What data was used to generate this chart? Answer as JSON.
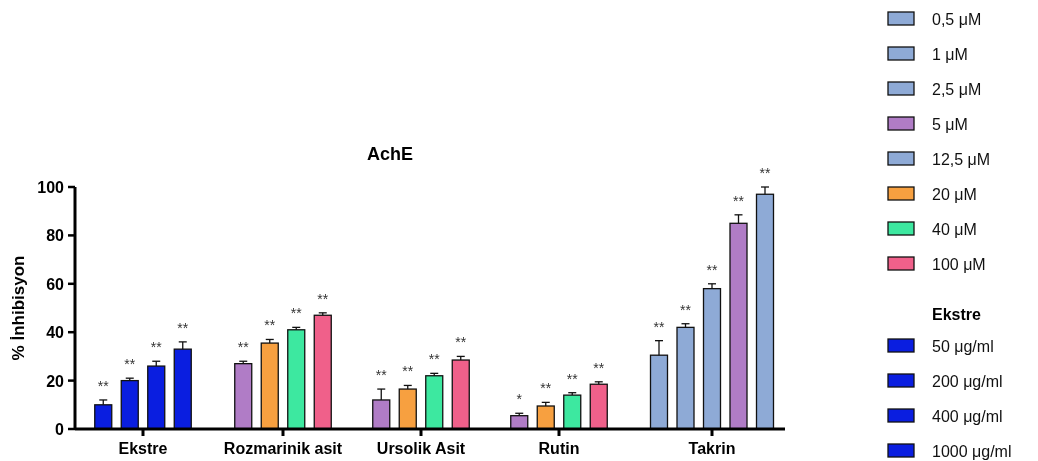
{
  "chart_data": {
    "type": "bar",
    "title": "AchE",
    "ylabel": "% İnhibisyon",
    "legend_title": "Ekstre",
    "legend": "right",
    "categories": [
      "Ekstre",
      "Rozmarinik asit",
      "Ursolik Asit",
      "Rutin",
      "Takrin"
    ],
    "ylim": [
      0,
      100
    ],
    "yticks": [
      0,
      20,
      40,
      60,
      80,
      100
    ],
    "grid": false,
    "series": [
      {
        "name": "0,5 μM",
        "color": "#8eaad6",
        "values": [
          null,
          null,
          null,
          null,
          30.5
        ],
        "errors": [
          null,
          null,
          null,
          null,
          6
        ],
        "value_labels": [
          null,
          null,
          null,
          null,
          "**"
        ]
      },
      {
        "name": "1 μM",
        "color": "#8eaad6",
        "values": [
          null,
          null,
          null,
          null,
          42
        ],
        "errors": [
          null,
          null,
          null,
          null,
          1.5
        ],
        "value_labels": [
          null,
          null,
          null,
          null,
          "**"
        ]
      },
      {
        "name": "2,5 μM",
        "color": "#8eaad6",
        "values": [
          null,
          null,
          null,
          null,
          58
        ],
        "errors": [
          null,
          null,
          null,
          null,
          2
        ],
        "value_labels": [
          null,
          null,
          null,
          null,
          "**"
        ]
      },
      {
        "name": "5 μM",
        "color": "#b07cc6",
        "values": [
          null,
          27,
          12,
          5.5,
          85
        ],
        "errors": [
          null,
          1,
          4.5,
          1,
          3.5
        ],
        "value_labels": [
          null,
          "**",
          "**",
          "*",
          "**"
        ]
      },
      {
        "name": "12,5 μM",
        "color": "#8eaad6",
        "values": [
          null,
          null,
          null,
          null,
          97
        ],
        "errors": [
          null,
          null,
          null,
          null,
          3
        ],
        "value_labels": [
          null,
          null,
          null,
          null,
          "**"
        ]
      },
      {
        "name": "20 μM",
        "color": "#f7a040",
        "values": [
          null,
          35.5,
          16.5,
          9.5,
          null
        ],
        "errors": [
          null,
          1.5,
          1.5,
          1.5,
          null
        ],
        "value_labels": [
          null,
          "**",
          "**",
          "**",
          null
        ]
      },
      {
        "name": "40 μM",
        "color": "#3de8a0",
        "values": [
          null,
          41,
          22,
          14,
          null
        ],
        "errors": [
          null,
          1,
          1,
          1,
          null
        ],
        "value_labels": [
          null,
          "**",
          "**",
          "**",
          null
        ]
      },
      {
        "name": "100 μM",
        "color": "#f0608a",
        "values": [
          null,
          47,
          28.5,
          18.5,
          null
        ],
        "errors": [
          null,
          1,
          1.5,
          1,
          null
        ],
        "value_labels": [
          null,
          "**",
          "**",
          "**",
          null
        ]
      },
      {
        "name": "50 μg/ml",
        "color": "#0a1ee0",
        "values": [
          10,
          null,
          null,
          null,
          null
        ],
        "errors": [
          2,
          null,
          null,
          null,
          null
        ],
        "value_labels": [
          "**",
          null,
          null,
          null,
          null
        ]
      },
      {
        "name": "200 μg/ml",
        "color": "#0a1ee0",
        "values": [
          20,
          null,
          null,
          null,
          null
        ],
        "errors": [
          1,
          null,
          null,
          null,
          null
        ],
        "value_labels": [
          "**",
          null,
          null,
          null,
          null
        ]
      },
      {
        "name": "400 μg/ml",
        "color": "#0a1ee0",
        "values": [
          26,
          null,
          null,
          null,
          null
        ],
        "errors": [
          2,
          null,
          null,
          null,
          null
        ],
        "value_labels": [
          "**",
          null,
          null,
          null,
          null
        ]
      },
      {
        "name": "1000 μg/ml",
        "color": "#0a1ee0",
        "values": [
          33,
          null,
          null,
          null,
          null
        ],
        "errors": [
          3,
          null,
          null,
          null,
          null
        ],
        "value_labels": [
          "**",
          null,
          null,
          null,
          null
        ]
      }
    ]
  }
}
